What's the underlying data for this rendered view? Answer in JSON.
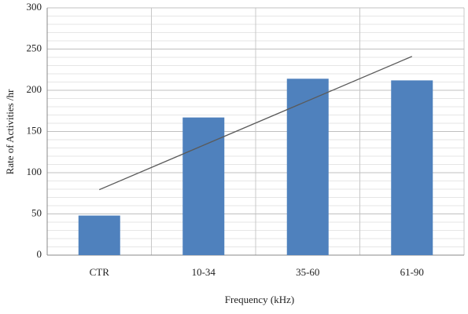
{
  "chart_data": {
    "type": "bar",
    "x_label": "Frequency (kHz)",
    "y_label": "Rate of Activities /hr",
    "categories": [
      "CTR",
      "10-34",
      "35-60",
      "61-90"
    ],
    "series": [
      {
        "type": "bar",
        "color": "#4f81bd",
        "values": [
          48,
          167,
          214,
          212
        ]
      },
      {
        "type": "line",
        "color": "#5a5a5a",
        "values": [
          79.4,
          133.3,
          187.2,
          241.1
        ]
      }
    ],
    "ylim": [
      0,
      300
    ],
    "yticks": [
      0,
      50,
      100,
      150,
      200,
      250,
      300
    ],
    "grid": true,
    "minor_grid_step": 10
  }
}
